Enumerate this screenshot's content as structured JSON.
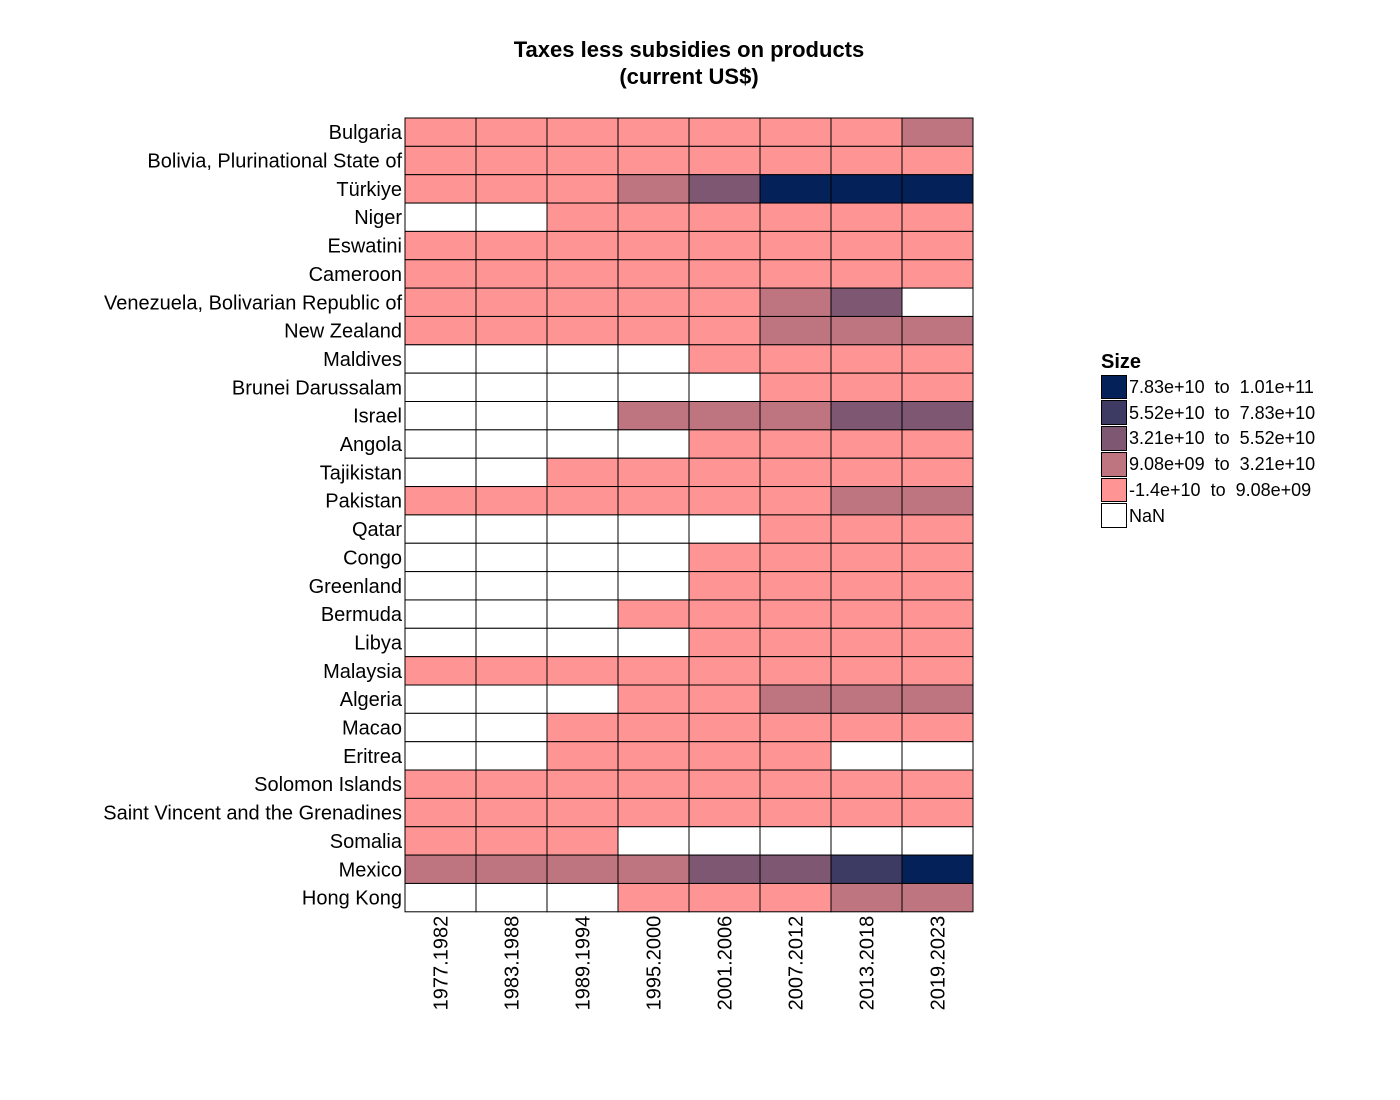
{
  "title": {
    "line1": "Taxes less subsidies on products",
    "line2": "(current US$)"
  },
  "legend": {
    "title": "Size",
    "items": [
      {
        "label": "7.83e+10  to  1.01e+11",
        "color": "#04215a"
      },
      {
        "label": "5.52e+10  to  7.83e+10",
        "color": "#3d3a63"
      },
      {
        "label": "3.21e+10  to  5.52e+10",
        "color": "#7e5873"
      },
      {
        "label": "9.08e+09  to  3.21e+10",
        "color": "#bf7580"
      },
      {
        "label": "-1.4e+10  to  9.08e+09",
        "color": "#ff9494"
      },
      {
        "label": "NaN",
        "color": "#ffffff"
      }
    ]
  },
  "chart_data": {
    "type": "heatmap",
    "title": "Taxes less subsidies on products (current US$)",
    "legend_title": "Size",
    "legend_placement": "right",
    "x_categories": [
      "1977.1982",
      "1983.1988",
      "1989.1994",
      "1995.2000",
      "2001.2006",
      "2007.2012",
      "2013.2018",
      "2019.2023"
    ],
    "y_categories": [
      "Bulgaria",
      "Bolivia, Plurinational State of",
      "Türkiye",
      "Niger",
      "Eswatini",
      "Cameroon",
      "Venezuela, Bolivarian Republic of",
      "New Zealand",
      "Maldives",
      "Brunei Darussalam",
      "Israel",
      "Angola",
      "Tajikistan",
      "Pakistan",
      "Qatar",
      "Congo",
      "Greenland",
      "Bermuda",
      "Libya",
      "Malaysia",
      "Algeria",
      "Macao",
      "Eritrea",
      "Solomon Islands",
      "Saint Vincent and the Grenadines",
      "Somalia",
      "Mexico",
      "Hong Kong"
    ],
    "bins": [
      "-1.4e+10  to  9.08e+09",
      "9.08e+09  to  3.21e+10",
      "3.21e+10  to  5.52e+10",
      "5.52e+10  to  7.83e+10",
      "7.83e+10  to  1.01e+11"
    ],
    "cell_bins_note": "cells hold bin index 0-4 (into bins), null = NaN",
    "cells": [
      [
        0,
        0,
        0,
        0,
        0,
        0,
        0,
        1
      ],
      [
        0,
        0,
        0,
        0,
        0,
        0,
        0,
        0
      ],
      [
        0,
        0,
        0,
        1,
        2,
        4,
        4,
        4
      ],
      [
        null,
        null,
        0,
        0,
        0,
        0,
        0,
        0
      ],
      [
        0,
        0,
        0,
        0,
        0,
        0,
        0,
        0
      ],
      [
        0,
        0,
        0,
        0,
        0,
        0,
        0,
        0
      ],
      [
        0,
        0,
        0,
        0,
        0,
        1,
        2,
        null
      ],
      [
        0,
        0,
        0,
        0,
        0,
        1,
        1,
        1
      ],
      [
        null,
        null,
        null,
        null,
        0,
        0,
        0,
        0
      ],
      [
        null,
        null,
        null,
        null,
        null,
        0,
        0,
        0
      ],
      [
        null,
        null,
        null,
        1,
        1,
        1,
        2,
        2
      ],
      [
        null,
        null,
        null,
        null,
        0,
        0,
        0,
        0
      ],
      [
        null,
        null,
        0,
        0,
        0,
        0,
        0,
        0
      ],
      [
        0,
        0,
        0,
        0,
        0,
        0,
        1,
        1
      ],
      [
        null,
        null,
        null,
        null,
        null,
        0,
        0,
        0
      ],
      [
        null,
        null,
        null,
        null,
        0,
        0,
        0,
        0
      ],
      [
        null,
        null,
        null,
        null,
        0,
        0,
        0,
        0
      ],
      [
        null,
        null,
        null,
        0,
        0,
        0,
        0,
        0
      ],
      [
        null,
        null,
        null,
        null,
        0,
        0,
        0,
        0
      ],
      [
        0,
        0,
        0,
        0,
        0,
        0,
        0,
        0
      ],
      [
        null,
        null,
        null,
        0,
        0,
        1,
        1,
        1
      ],
      [
        null,
        null,
        0,
        0,
        0,
        0,
        0,
        0
      ],
      [
        null,
        null,
        0,
        0,
        0,
        0,
        null,
        null
      ],
      [
        0,
        0,
        0,
        0,
        0,
        0,
        0,
        0
      ],
      [
        0,
        0,
        0,
        0,
        0,
        0,
        0,
        0
      ],
      [
        0,
        0,
        0,
        null,
        null,
        null,
        null,
        null
      ],
      [
        1,
        1,
        1,
        1,
        2,
        2,
        3,
        4
      ],
      [
        null,
        null,
        null,
        0,
        0,
        0,
        1,
        1
      ]
    ]
  }
}
